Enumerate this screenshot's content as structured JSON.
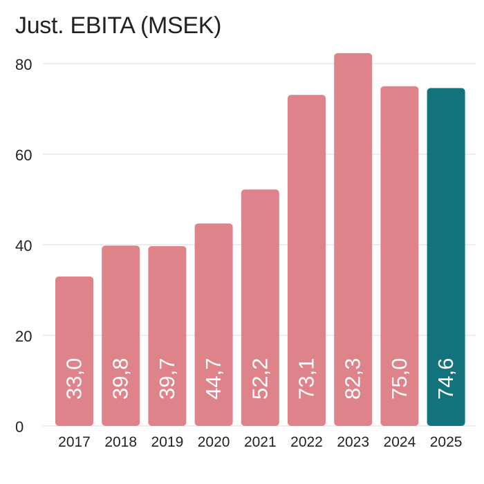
{
  "chart_data": {
    "type": "bar",
    "title": "Just. EBITA (MSEK)",
    "xlabel": "",
    "ylabel": "",
    "categories": [
      "2017",
      "2018",
      "2019",
      "2020",
      "2021",
      "2022",
      "2023",
      "2024",
      "2025"
    ],
    "values": [
      33.0,
      39.8,
      39.7,
      44.7,
      52.2,
      73.1,
      82.3,
      75.0,
      74.6
    ],
    "value_labels": [
      "33,0",
      "39,8",
      "39,7",
      "44,7",
      "52,2",
      "73,1",
      "82,3",
      "75,0",
      "74,6"
    ],
    "highlight_index": 8,
    "ylim": [
      0,
      80
    ],
    "yticks": [
      0,
      20,
      40,
      60,
      80
    ],
    "ytick_labels": [
      "0",
      "20",
      "40",
      "60",
      "80"
    ],
    "grid": true,
    "legend": "none",
    "colors": {
      "bar": "#df838b",
      "highlight": "#12737d",
      "grid": "#e2e2e2",
      "text": "#222222",
      "label": "#ffffff"
    }
  }
}
